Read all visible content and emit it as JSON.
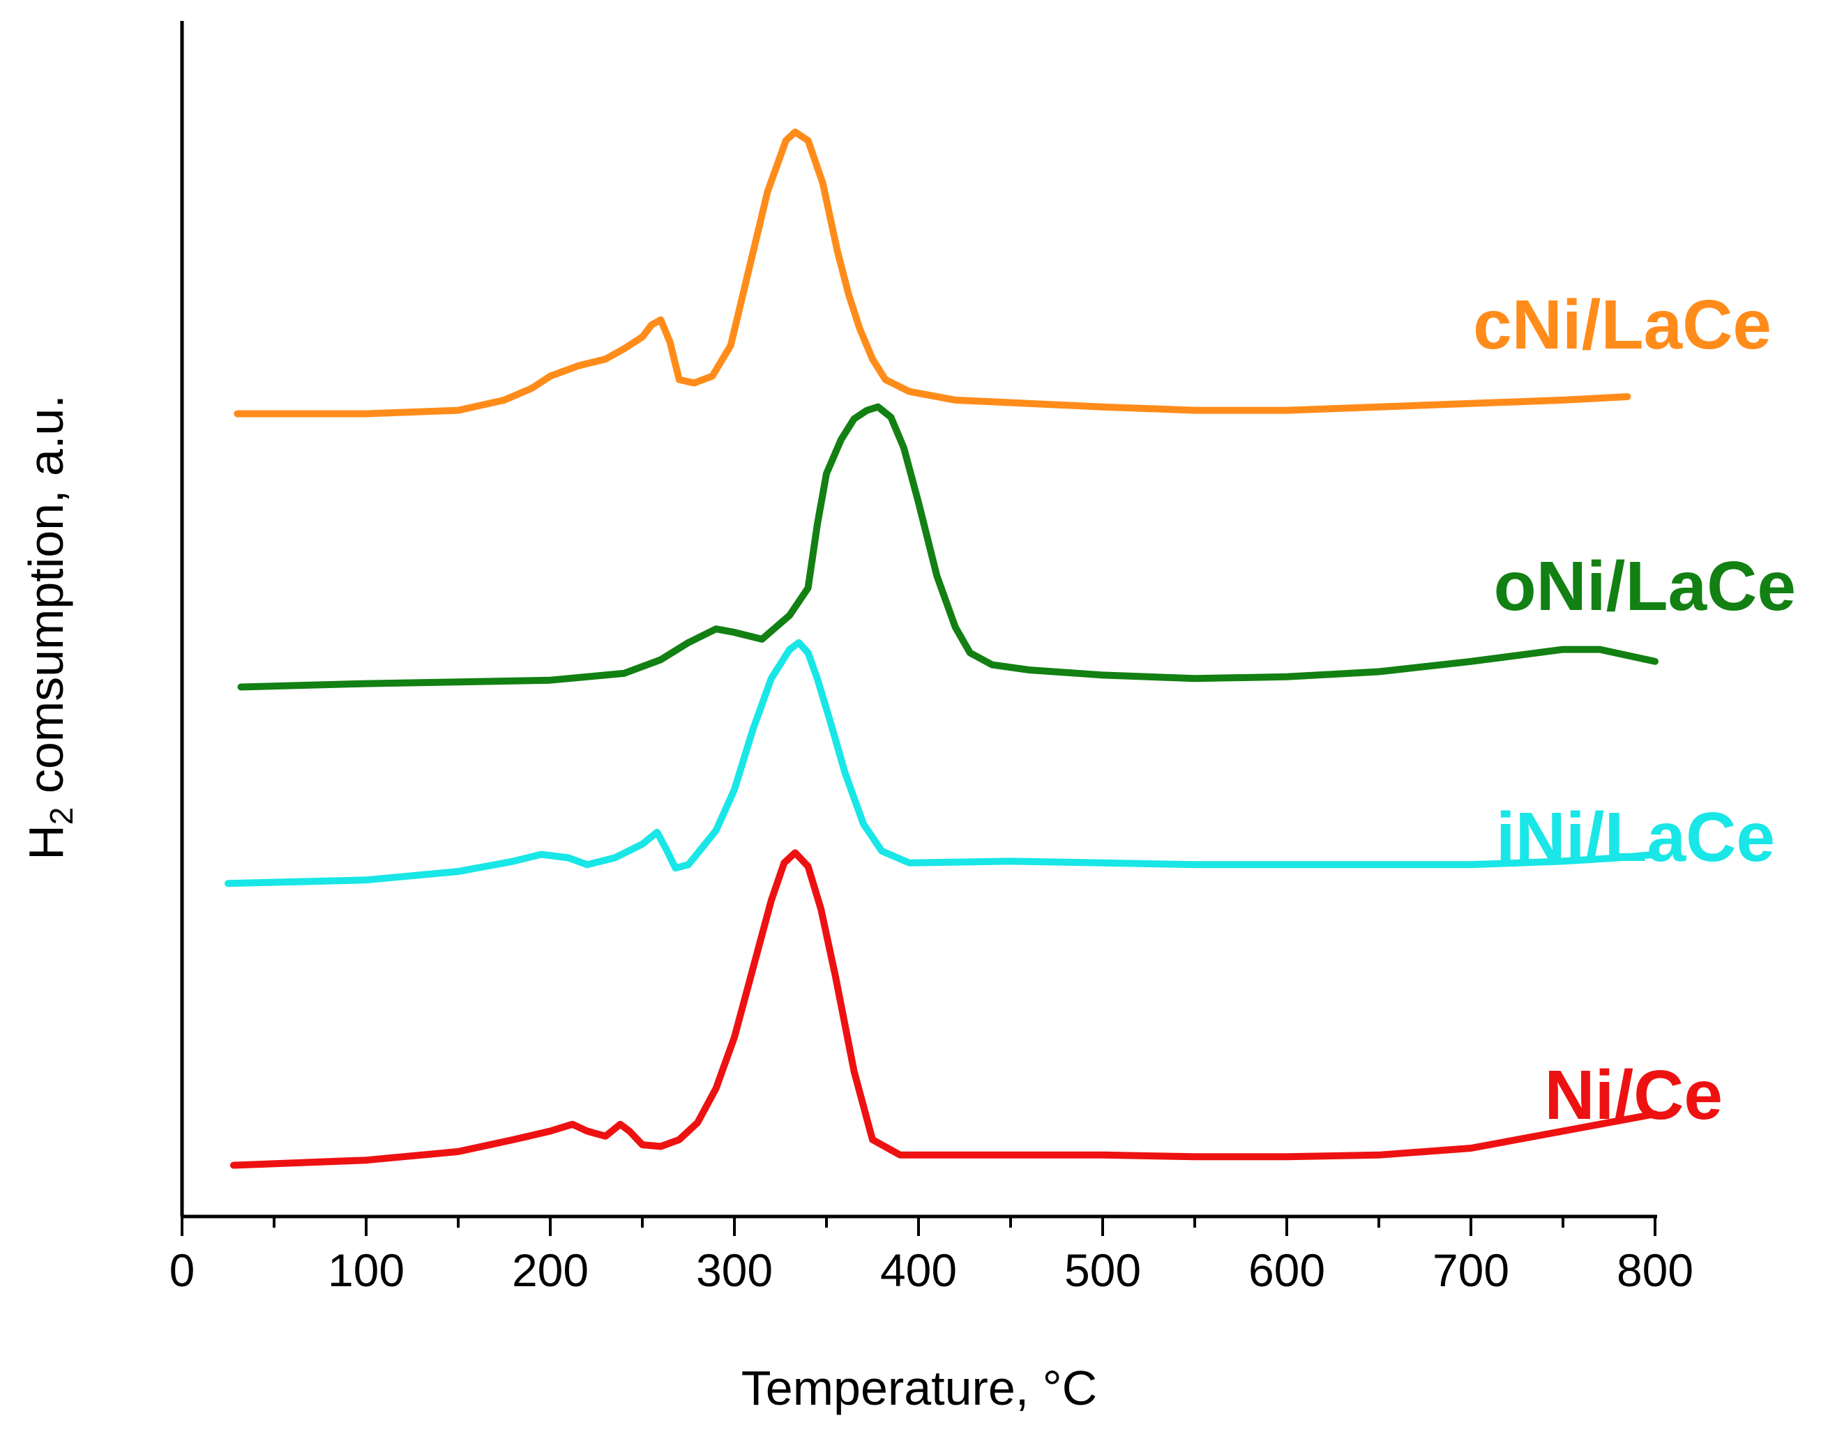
{
  "chart_data": {
    "type": "line",
    "title": "",
    "xlabel": "Temperature, °C",
    "ylabel": {
      "main": "H",
      "subscript": "2",
      "rest": " comsumption, a.u."
    },
    "xlim": [
      0,
      800
    ],
    "ylim": [
      -0.3,
      6.7
    ],
    "x_ticks": [
      0,
      100,
      200,
      300,
      400,
      500,
      600,
      700,
      800
    ],
    "x_minor_step": 50,
    "y_ticks_shown": false,
    "grid": false,
    "legend": "inline labels to the right of each curve",
    "series": [
      {
        "name": "cNi/LaCe",
        "color": "#ff8c1a",
        "x": [
          30,
          100,
          150,
          175,
          190,
          200,
          215,
          230,
          240,
          250,
          255,
          260,
          265,
          270,
          278,
          288,
          298,
          308,
          318,
          328,
          333,
          340,
          348,
          356,
          362,
          368,
          375,
          382,
          395,
          420,
          500,
          550,
          600,
          650,
          700,
          750,
          785
        ],
        "y": [
          4.4,
          4.4,
          4.42,
          4.48,
          4.55,
          4.62,
          4.68,
          4.72,
          4.78,
          4.85,
          4.92,
          4.95,
          4.82,
          4.6,
          4.58,
          4.62,
          4.8,
          5.25,
          5.7,
          6.0,
          6.05,
          6.0,
          5.75,
          5.35,
          5.1,
          4.9,
          4.72,
          4.6,
          4.53,
          4.48,
          4.44,
          4.42,
          4.42,
          4.44,
          4.46,
          4.48,
          4.5
        ]
      },
      {
        "name": "oNi/LaCe",
        "color": "#128012",
        "x": [
          32,
          100,
          150,
          200,
          240,
          260,
          275,
          290,
          300,
          315,
          330,
          340,
          345,
          350,
          358,
          365,
          372,
          378,
          385,
          392,
          400,
          410,
          420,
          428,
          440,
          460,
          500,
          550,
          600,
          650,
          700,
          750,
          770,
          800
        ],
        "y": [
          2.8,
          2.82,
          2.83,
          2.84,
          2.88,
          2.96,
          3.06,
          3.14,
          3.12,
          3.08,
          3.22,
          3.38,
          3.75,
          4.05,
          4.25,
          4.37,
          4.42,
          4.44,
          4.38,
          4.2,
          3.88,
          3.45,
          3.15,
          3.0,
          2.93,
          2.9,
          2.87,
          2.85,
          2.86,
          2.89,
          2.95,
          3.02,
          3.02,
          2.95
        ]
      },
      {
        "name": "iNi/LaCe",
        "color": "#19e6e6",
        "x": [
          25,
          100,
          150,
          180,
          195,
          210,
          220,
          235,
          250,
          258,
          263,
          268,
          275,
          290,
          300,
          310,
          320,
          330,
          335,
          340,
          345,
          352,
          360,
          370,
          380,
          395,
          450,
          500,
          550,
          600,
          650,
          700,
          750,
          780,
          800
        ],
        "y": [
          1.65,
          1.67,
          1.72,
          1.78,
          1.82,
          1.8,
          1.76,
          1.8,
          1.88,
          1.95,
          1.85,
          1.74,
          1.76,
          1.96,
          2.2,
          2.55,
          2.85,
          3.02,
          3.06,
          3.0,
          2.85,
          2.6,
          2.3,
          2.0,
          1.84,
          1.77,
          1.78,
          1.77,
          1.76,
          1.76,
          1.76,
          1.76,
          1.78,
          1.8,
          1.82
        ]
      },
      {
        "name": "Ni/Ce",
        "color": "#ee1111",
        "x": [
          28,
          100,
          150,
          180,
          200,
          212,
          220,
          230,
          238,
          243,
          250,
          260,
          270,
          280,
          290,
          300,
          310,
          320,
          327,
          333,
          340,
          347,
          355,
          365,
          375,
          390,
          450,
          500,
          550,
          600,
          650,
          700,
          750,
          800
        ],
        "y": [
          0.0,
          0.03,
          0.08,
          0.15,
          0.2,
          0.24,
          0.2,
          0.17,
          0.24,
          0.2,
          0.12,
          0.11,
          0.15,
          0.25,
          0.45,
          0.75,
          1.15,
          1.55,
          1.77,
          1.83,
          1.75,
          1.5,
          1.1,
          0.55,
          0.15,
          0.06,
          0.06,
          0.06,
          0.05,
          0.05,
          0.06,
          0.1,
          0.2,
          0.3
        ]
      }
    ]
  }
}
